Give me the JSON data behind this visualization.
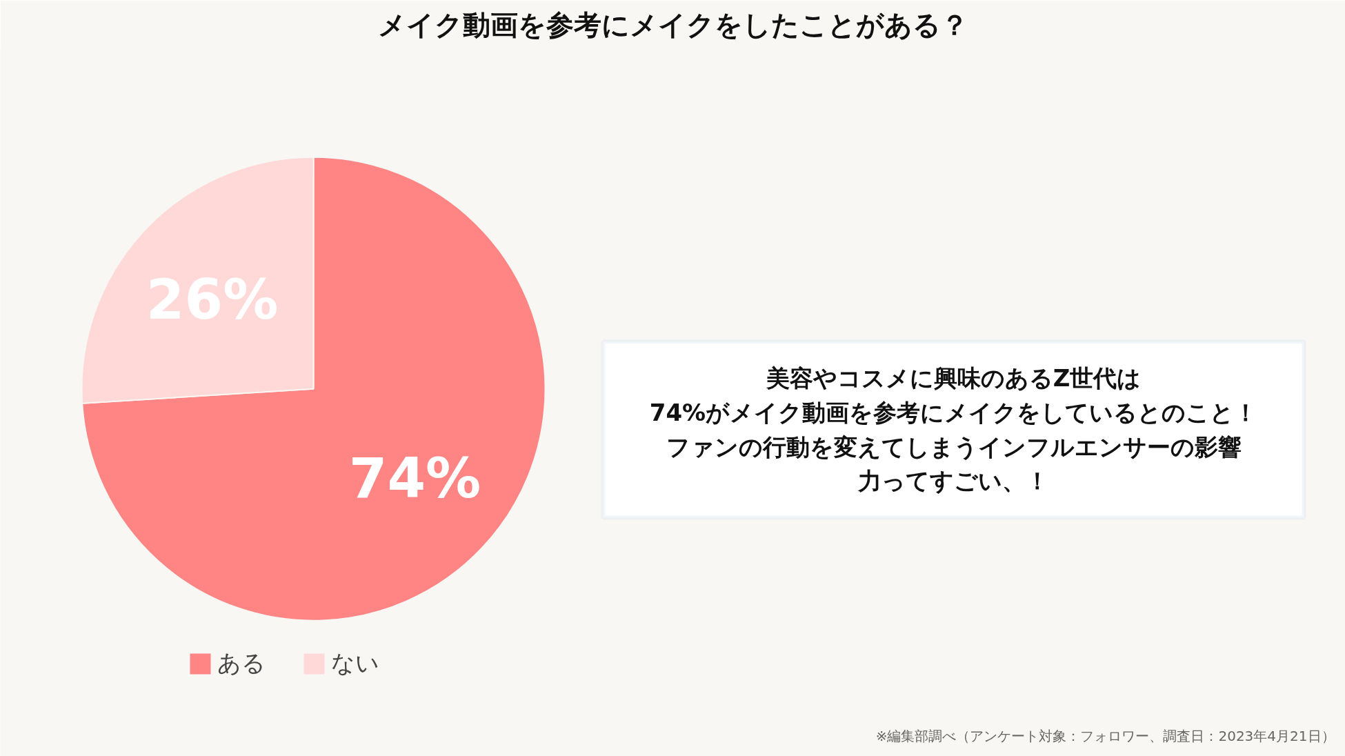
{
  "chart_data": {
    "type": "pie",
    "title": "メイク動画を参考にメイクをしたことがある？",
    "categories": [
      "ある",
      "ない"
    ],
    "values": [
      74,
      26
    ],
    "colors": [
      "#ff8585",
      "#ffd8d8"
    ],
    "value_labels": [
      "74%",
      "26%"
    ],
    "legend": "bottom",
    "annotations": [
      "美容やコスメに興味のあるZ世代は",
      "74%がメイク動画を参考にメイクをしているとのこと！",
      "ファンの行動を変えてしまうインフルエンサーの影響",
      "力ってすごい、！",
      "※編集部調べ（アンケート対象：フォロワー、調査日：2023年4月21日）"
    ]
  }
}
